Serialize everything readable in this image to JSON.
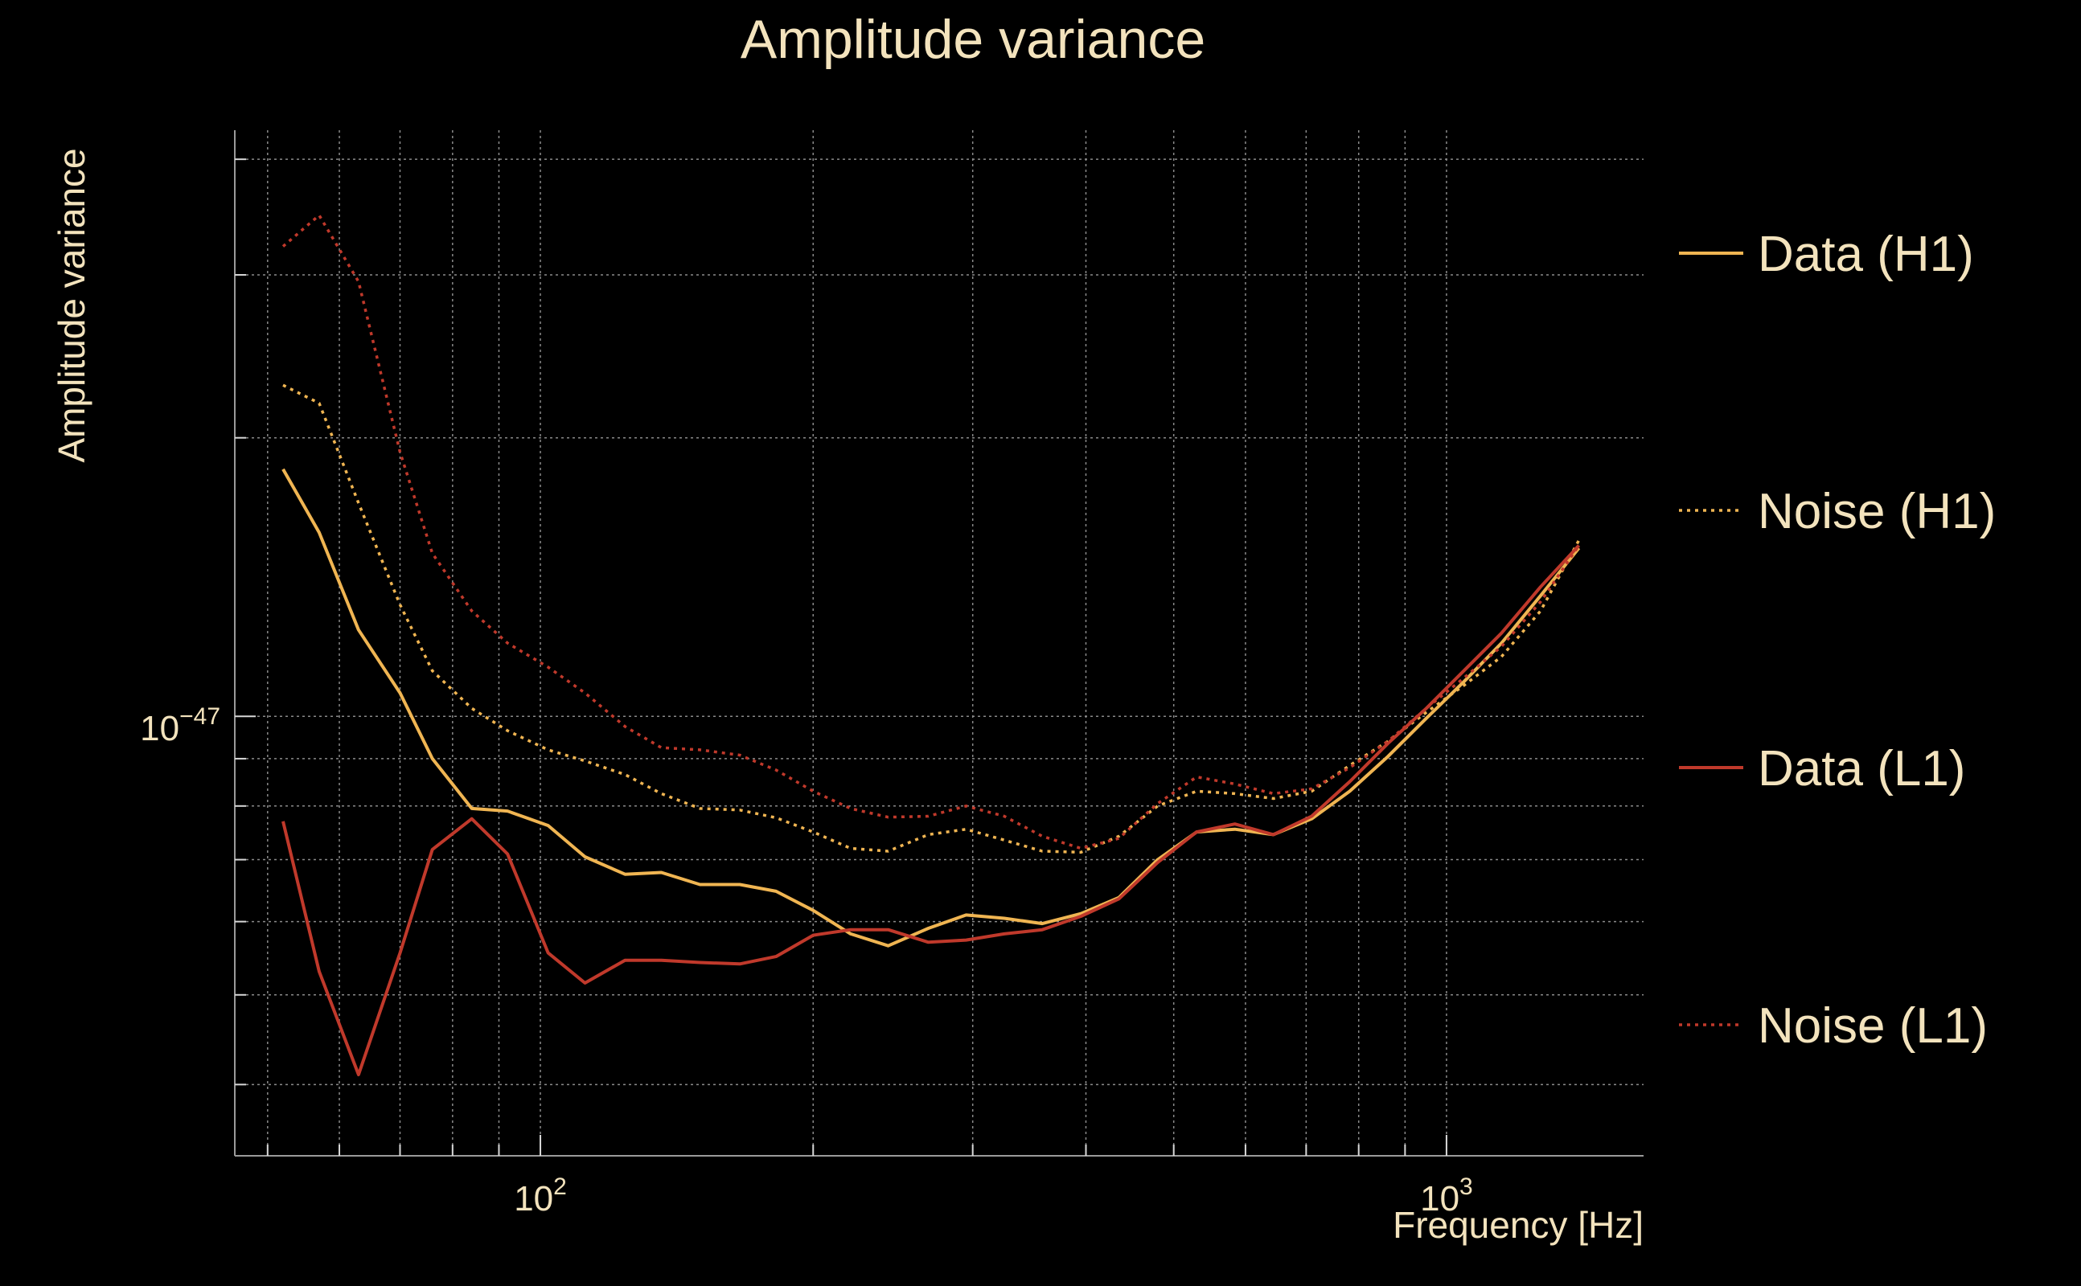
{
  "chart_data": {
    "type": "line",
    "title": "Amplitude variance",
    "xlabel": "Frequency [Hz]",
    "ylabel": "Amplitude variance",
    "x_scale": "log",
    "y_scale": "log",
    "xlim": [
      46,
      1650
    ],
    "ylim": [
      3.35e-48,
      4.3e-47
    ],
    "grid": true,
    "legend_position": "right",
    "x_ticks": [
      {
        "value": 100,
        "label": "10",
        "exp": "2"
      },
      {
        "value": 1000,
        "label": "10",
        "exp": "3"
      }
    ],
    "y_ticks": [
      {
        "value": 1e-47,
        "label": "10",
        "exp": "−47"
      }
    ],
    "series": [
      {
        "name": "Data (H1)",
        "color": "#f0b552",
        "dash": "solid",
        "x": [
          52,
          57,
          63,
          70,
          76,
          84,
          92,
          102,
          112,
          124,
          136,
          150,
          166,
          182,
          200,
          220,
          242,
          268,
          295,
          325,
          358,
          395,
          435,
          480,
          530,
          584,
          644,
          710,
          782,
          862,
          950,
          1045,
          1150,
          1270,
          1400
        ],
        "y": [
          1.85e-47,
          1.58e-47,
          1.24e-47,
          1.06e-47,
          9e-48,
          7.95e-48,
          7.9e-48,
          7.62e-48,
          7.05e-48,
          6.75e-48,
          6.78e-48,
          6.58e-48,
          6.58e-48,
          6.47e-48,
          6.17e-48,
          5.82e-48,
          5.65e-48,
          5.9e-48,
          6.1e-48,
          6.05e-48,
          5.97e-48,
          6.12e-48,
          6.37e-48,
          7e-48,
          7.5e-48,
          7.55e-48,
          7.45e-48,
          7.75e-48,
          8.3e-48,
          9.05e-48,
          9.95e-48,
          1.09e-47,
          1.2e-47,
          1.35e-47,
          1.52e-47
        ]
      },
      {
        "name": "Noise (H1)",
        "color": "#f0b552",
        "dash": "dotted",
        "x": [
          52,
          57,
          63,
          70,
          76,
          84,
          92,
          102,
          112,
          124,
          136,
          150,
          166,
          182,
          200,
          220,
          242,
          268,
          295,
          325,
          358,
          395,
          435,
          480,
          530,
          584,
          644,
          710,
          782,
          862,
          950,
          1045,
          1150,
          1270,
          1400
        ],
        "y": [
          2.28e-47,
          2.18e-47,
          1.7e-47,
          1.32e-47,
          1.12e-47,
          1.02e-47,
          9.65e-48,
          9.2e-48,
          8.95e-48,
          8.65e-48,
          8.25e-48,
          7.95e-48,
          7.92e-48,
          7.77e-48,
          7.5e-48,
          7.2e-48,
          7.15e-48,
          7.45e-48,
          7.55e-48,
          7.35e-48,
          7.15e-48,
          7.13e-48,
          7.42e-48,
          8e-48,
          8.3e-48,
          8.25e-48,
          8.15e-48,
          8.3e-48,
          8.85e-48,
          9.4e-48,
          1.01e-47,
          1.08e-47,
          1.16e-47,
          1.3e-47,
          1.55e-47
        ]
      },
      {
        "name": "Data (L1)",
        "color": "#c0392b",
        "dash": "solid",
        "x": [
          52,
          57,
          63,
          70,
          76,
          84,
          92,
          102,
          112,
          124,
          136,
          150,
          166,
          182,
          200,
          220,
          242,
          268,
          295,
          325,
          358,
          395,
          435,
          480,
          530,
          584,
          644,
          710,
          782,
          862,
          950,
          1045,
          1150,
          1270,
          1400
        ],
        "y": [
          7.7e-48,
          5.3e-48,
          4.1e-48,
          5.55e-48,
          7.18e-48,
          7.75e-48,
          7.1e-48,
          5.55e-48,
          5.15e-48,
          5.45e-48,
          5.45e-48,
          5.42e-48,
          5.4e-48,
          5.5e-48,
          5.8e-48,
          5.88e-48,
          5.88e-48,
          5.7e-48,
          5.73e-48,
          5.82e-48,
          5.88e-48,
          6.08e-48,
          6.35e-48,
          6.95e-48,
          7.5e-48,
          7.65e-48,
          7.45e-48,
          7.8e-48,
          8.5e-48,
          9.35e-48,
          1.02e-47,
          1.12e-47,
          1.23e-47,
          1.38e-47,
          1.53e-47
        ]
      },
      {
        "name": "Noise (L1)",
        "color": "#c0392b",
        "dash": "dotted",
        "x": [
          52,
          57,
          63,
          70,
          76,
          84,
          92,
          102,
          112,
          124,
          136,
          150,
          166,
          182,
          200,
          220,
          242,
          268,
          295,
          325,
          358,
          395,
          435,
          480,
          530,
          584,
          644,
          710,
          782,
          862,
          950,
          1045,
          1150,
          1270,
          1400
        ],
        "y": [
          3.22e-47,
          3.48e-47,
          2.95e-47,
          1.93e-47,
          1.5e-47,
          1.3e-47,
          1.2e-47,
          1.13e-47,
          1.06e-47,
          9.75e-48,
          9.25e-48,
          9.2e-48,
          9.08e-48,
          8.75e-48,
          8.3e-48,
          7.95e-48,
          7.78e-48,
          7.8e-48,
          8e-48,
          7.8e-48,
          7.42e-48,
          7.2e-48,
          7.38e-48,
          8.05e-48,
          8.6e-48,
          8.45e-48,
          8.25e-48,
          8.35e-48,
          8.8e-48,
          9.4e-48,
          1.02e-47,
          1.1e-47,
          1.19e-47,
          1.33e-47,
          1.53e-47
        ]
      }
    ]
  }
}
